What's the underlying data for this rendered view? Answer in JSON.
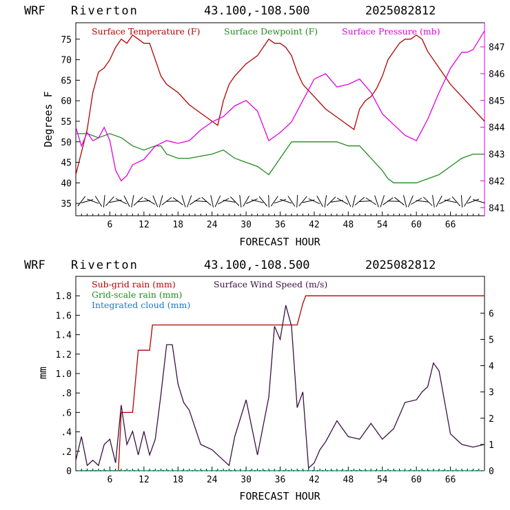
{
  "top": {
    "header": {
      "model": "WRF",
      "station": "Riverton",
      "coords": "43.100,-108.500",
      "run": "2025082812"
    },
    "xlabel": "FORECAST HOUR",
    "ylabel": "Degrees F",
    "x_ticks": [
      "6",
      "12",
      "18",
      "24",
      "30",
      "36",
      "42",
      "48",
      "54",
      "60",
      "66"
    ],
    "y_ticks": [
      "35",
      "40",
      "45",
      "50",
      "55",
      "60",
      "65",
      "70",
      "75"
    ],
    "y2_ticks": [
      "841",
      "842",
      "843",
      "844",
      "845",
      "846",
      "847"
    ],
    "legend": [
      {
        "label": "Surface Temperature (F)",
        "color": "#b30000"
      },
      {
        "label": "Surface Dewpoint (F)",
        "color": "#1f8a1f"
      },
      {
        "label": "Surface Pressure (mb)",
        "color": "#e000e0"
      }
    ]
  },
  "bottom": {
    "header": {
      "model": "WRF",
      "station": "Riverton",
      "coords": "43.100,-108.500",
      "run": "2025082812"
    },
    "xlabel": "FORECAST HOUR",
    "ylabel": "mm",
    "x_ticks": [
      "6",
      "12",
      "18",
      "24",
      "30",
      "36",
      "42",
      "48",
      "54",
      "60",
      "66"
    ],
    "y_ticks": [
      "0",
      ".2",
      ".4",
      ".6",
      ".8",
      "1.0",
      "1.2",
      "1.4",
      "1.6",
      "1.8"
    ],
    "y2_ticks": [
      "0",
      "1",
      "2",
      "3",
      "4",
      "5",
      "6"
    ],
    "legend": [
      {
        "label": "Sub-grid rain (mm)",
        "color": "#b30000"
      },
      {
        "label": "Surface Wind Speed (m/s)",
        "color": "#3a1040"
      },
      {
        "label": "Grid-scale rain (mm)",
        "color": "#1f8a1f"
      },
      {
        "label": "Integrated cloud (mm)",
        "color": "#1a78c8"
      }
    ]
  },
  "chart_data": [
    {
      "type": "line",
      "xlabel": "FORECAST HOUR",
      "ylabel": "Degrees F",
      "xlim": [
        0,
        72
      ],
      "ylim": [
        32,
        79
      ],
      "y2lim": [
        840.7,
        847.9
      ],
      "series": [
        {
          "name": "Surface Temperature (F)",
          "axis": "left",
          "color": "#b30000",
          "x": [
            0,
            2,
            3,
            4,
            5,
            6,
            7,
            8,
            9,
            10,
            11,
            12,
            13,
            14,
            15,
            16,
            18,
            20,
            22,
            24,
            25,
            26,
            27,
            28,
            30,
            32,
            33,
            34,
            35,
            36,
            37,
            38,
            39,
            40,
            42,
            44,
            46,
            48,
            49,
            50,
            51,
            52,
            53,
            54,
            55,
            56,
            57,
            58,
            59,
            60,
            61,
            62,
            64,
            66,
            68,
            70,
            72
          ],
          "y": [
            42,
            53,
            62,
            67,
            68,
            70,
            73,
            75,
            74,
            76,
            75,
            74,
            74,
            70,
            66,
            64,
            62,
            59,
            57,
            55,
            54,
            60,
            64,
            66,
            69,
            71,
            73,
            75,
            74,
            74,
            73,
            71,
            67,
            64,
            61,
            58,
            56,
            54,
            53,
            58,
            60,
            61,
            63,
            66,
            70,
            72,
            74,
            75,
            75,
            76,
            75,
            72,
            68,
            64,
            61,
            58,
            55
          ]
        },
        {
          "name": "Surface Dewpoint (F)",
          "axis": "left",
          "color": "#1f8a1f",
          "x": [
            0,
            2,
            4,
            6,
            8,
            10,
            12,
            14,
            15,
            16,
            18,
            20,
            24,
            26,
            28,
            30,
            32,
            34,
            35,
            36,
            38,
            40,
            42,
            44,
            46,
            48,
            50,
            52,
            54,
            55,
            56,
            58,
            60,
            62,
            64,
            66,
            68,
            70,
            72
          ],
          "y": [
            52,
            52,
            51,
            52,
            51,
            49,
            48,
            49,
            49,
            47,
            46,
            46,
            47,
            48,
            46,
            45,
            44,
            42,
            44,
            46,
            50,
            50,
            50,
            50,
            50,
            49,
            49,
            46,
            43,
            41,
            40,
            40,
            40,
            41,
            42,
            44,
            46,
            47,
            47
          ]
        },
        {
          "name": "Surface Pressure (mb)",
          "axis": "right",
          "color": "#e000e0",
          "x": [
            0,
            1,
            2,
            3,
            4,
            5,
            6,
            7,
            8,
            9,
            10,
            12,
            14,
            16,
            18,
            20,
            22,
            24,
            26,
            28,
            30,
            32,
            34,
            36,
            38,
            40,
            42,
            44,
            46,
            48,
            50,
            52,
            54,
            56,
            58,
            60,
            62,
            64,
            66,
            68,
            69,
            70,
            72
          ],
          "y": [
            844,
            843.3,
            843.8,
            843.5,
            843.6,
            844,
            843.5,
            842.4,
            842,
            842.2,
            842.6,
            842.8,
            843.3,
            843.5,
            843.4,
            843.5,
            843.9,
            844.2,
            844.4,
            844.8,
            845,
            844.6,
            843.5,
            843.8,
            844.2,
            845,
            845.8,
            846,
            845.5,
            845.6,
            845.8,
            845.3,
            844.5,
            844.1,
            843.7,
            843.5,
            844.3,
            845.3,
            846.2,
            846.8,
            846.8,
            846.9,
            847.6
          ]
        }
      ]
    },
    {
      "type": "line",
      "xlabel": "FORECAST HOUR",
      "ylabel": "mm",
      "xlim": [
        0,
        72
      ],
      "ylim": [
        0,
        2.0
      ],
      "y2lim": [
        0,
        7.4
      ],
      "series": [
        {
          "name": "Sub-grid rain (mm)",
          "axis": "left",
          "color": "#b30000",
          "x": [
            0,
            7.5,
            8,
            10,
            11,
            13,
            13.5,
            39,
            40,
            40.5,
            72
          ],
          "y": [
            0,
            0,
            0.6,
            0.6,
            1.24,
            1.24,
            1.5,
            1.5,
            1.72,
            1.8,
            1.8
          ]
        },
        {
          "name": "Surface Wind Speed (m/s)",
          "axis": "right",
          "color": "#3a1040",
          "x": [
            0,
            1,
            2,
            3,
            4,
            5,
            6,
            7,
            8,
            9,
            10,
            11,
            12,
            13,
            14,
            15,
            16,
            17,
            18,
            19,
            20,
            22,
            24,
            26,
            27,
            28,
            30,
            32,
            34,
            35,
            36,
            37,
            38,
            39,
            40,
            41,
            42,
            43,
            44,
            46,
            48,
            50,
            52,
            54,
            56,
            58,
            60,
            61,
            62,
            63,
            64,
            66,
            68,
            70,
            72
          ],
          "y": [
            0.4,
            1.3,
            0.2,
            0.4,
            0.2,
            1.0,
            1.2,
            0.3,
            2.5,
            1.0,
            1.5,
            0.6,
            1.5,
            0.6,
            1.2,
            2.9,
            4.8,
            4.8,
            3.3,
            2.6,
            2.3,
            1.0,
            0.8,
            0.4,
            0.2,
            1.3,
            2.7,
            0.6,
            2.8,
            5.5,
            5.0,
            6.3,
            5.5,
            2.4,
            3.0,
            0.1,
            0.3,
            0.8,
            1.1,
            1.9,
            1.3,
            1.2,
            1.8,
            1.2,
            1.6,
            2.6,
            2.7,
            3.0,
            3.2,
            4.1,
            3.8,
            1.4,
            1.0,
            0.9,
            1.0
          ]
        },
        {
          "name": "Grid-scale rain (mm)",
          "axis": "left",
          "color": "#1f8a1f",
          "x": [
            0,
            72
          ],
          "y": [
            0,
            0
          ]
        },
        {
          "name": "Integrated cloud (mm)",
          "axis": "left",
          "color": "#1a78c8",
          "x": [
            0,
            72
          ],
          "y": [
            0,
            0
          ]
        }
      ]
    }
  ]
}
